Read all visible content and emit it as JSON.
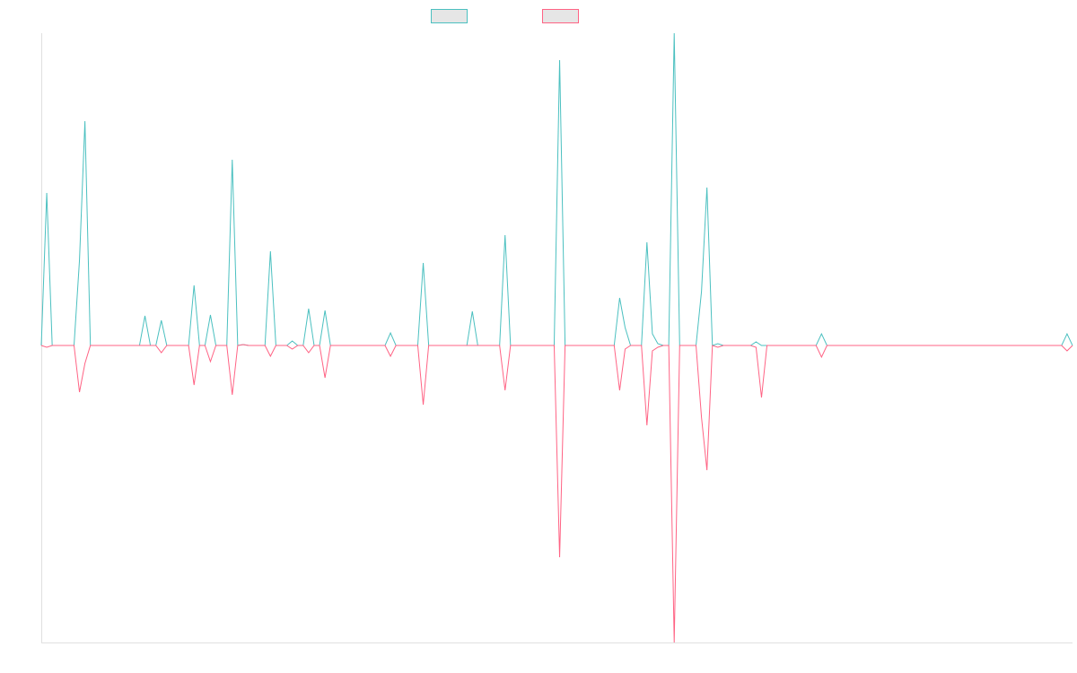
{
  "chart_data": {
    "type": "line",
    "ylim": [
      -331,
      348
    ],
    "series": [
      {
        "color": "#4bc0c0",
        "values": [
          0,
          170,
          0,
          0,
          0,
          0,
          0,
          95,
          250,
          0,
          0,
          0,
          0,
          0,
          0,
          0,
          0,
          0,
          0,
          33,
          0,
          0,
          28,
          0,
          0,
          0,
          0,
          0,
          67,
          0,
          0,
          34,
          0,
          0,
          0,
          207,
          0,
          1,
          0,
          0,
          0,
          0,
          105,
          0,
          0,
          0,
          5,
          0,
          0,
          41,
          0,
          0,
          39,
          0,
          0,
          0,
          0,
          0,
          0,
          0,
          0,
          0,
          0,
          0,
          14,
          0,
          0,
          0,
          0,
          0,
          92,
          0,
          0,
          0,
          0,
          0,
          0,
          0,
          0,
          38,
          0,
          0,
          0,
          0,
          0,
          123,
          0,
          0,
          0,
          0,
          0,
          0,
          0,
          0,
          0,
          318,
          0,
          0,
          0,
          0,
          0,
          0,
          0,
          0,
          0,
          0,
          53,
          20,
          0,
          0,
          0,
          115,
          13,
          2,
          0,
          0,
          348,
          0,
          0,
          0,
          0,
          60,
          176,
          0,
          2,
          0,
          0,
          0,
          0,
          0,
          0,
          4,
          0,
          0,
          0,
          0,
          0,
          0,
          0,
          0,
          0,
          0,
          0,
          13,
          0,
          0,
          0,
          0,
          0,
          0,
          0,
          0,
          0,
          0,
          0,
          0,
          0,
          0,
          0,
          0,
          0,
          0,
          0,
          0,
          0,
          0,
          0,
          0,
          0,
          0,
          0,
          0,
          0,
          0,
          0,
          0,
          0,
          0,
          0,
          0,
          0,
          0,
          0,
          0,
          0,
          0,
          0,
          0,
          13,
          0
        ]
      },
      {
        "color": "#ff6384",
        "values": [
          0,
          -2,
          0,
          0,
          0,
          0,
          0,
          -52,
          -20,
          0,
          0,
          0,
          0,
          0,
          0,
          0,
          0,
          0,
          0,
          0,
          0,
          0,
          -8,
          0,
          0,
          0,
          0,
          0,
          -44,
          0,
          0,
          -18,
          0,
          0,
          0,
          -55,
          0,
          1,
          0,
          0,
          0,
          0,
          -12,
          0,
          0,
          0,
          -4,
          0,
          0,
          -8,
          0,
          0,
          -36,
          0,
          0,
          0,
          0,
          0,
          0,
          0,
          0,
          0,
          0,
          0,
          -12,
          0,
          0,
          0,
          0,
          0,
          -66,
          0,
          0,
          0,
          0,
          0,
          0,
          0,
          0,
          0,
          0,
          0,
          0,
          0,
          0,
          -50,
          0,
          0,
          0,
          0,
          0,
          0,
          0,
          0,
          0,
          -236,
          0,
          0,
          0,
          0,
          0,
          0,
          0,
          0,
          0,
          0,
          -50,
          -4,
          0,
          0,
          0,
          -89,
          -6,
          -2,
          0,
          0,
          -331,
          0,
          0,
          0,
          0,
          -80,
          -139,
          0,
          -2,
          0,
          0,
          0,
          0,
          0,
          0,
          -2,
          -58,
          0,
          0,
          0,
          0,
          0,
          0,
          0,
          0,
          0,
          0,
          -13,
          0,
          0,
          0,
          0,
          0,
          0,
          0,
          0,
          0,
          0,
          0,
          0,
          0,
          0,
          0,
          0,
          0,
          0,
          0,
          0,
          0,
          0,
          0,
          0,
          0,
          0,
          0,
          0,
          0,
          0,
          0,
          0,
          0,
          0,
          0,
          0,
          0,
          0,
          0,
          0,
          0,
          0,
          0,
          0,
          -6,
          0
        ]
      }
    ]
  }
}
